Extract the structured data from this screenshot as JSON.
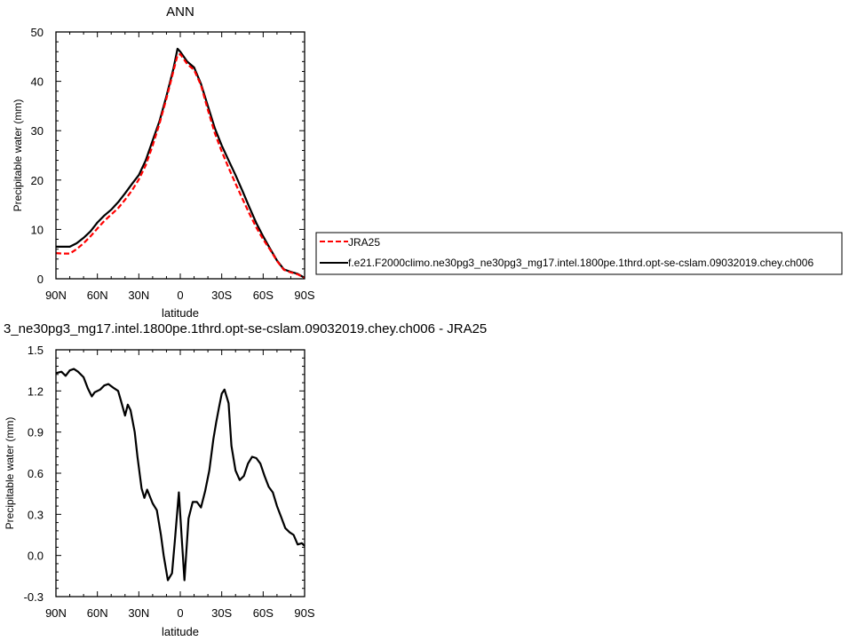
{
  "chart_data": [
    {
      "type": "line",
      "title": "ANN",
      "xlabel": "latitude",
      "ylabel": "Precipitable water (mm)",
      "xlim": [
        90,
        -90
      ],
      "ylim": [
        0,
        50
      ],
      "xticks": [
        90,
        60,
        30,
        0,
        -30,
        -60,
        -90
      ],
      "xtick_labels": [
        "90N",
        "60N",
        "30N",
        "0",
        "30S",
        "60S",
        "90S"
      ],
      "yticks": [
        0,
        10,
        20,
        30,
        40,
        50
      ],
      "ytick_labels": [
        "0",
        "10",
        "20",
        "30",
        "40",
        "50"
      ],
      "legend_position": "right",
      "series": [
        {
          "name": "JRA25",
          "color": "#ff0000",
          "dash": "dashed",
          "x": [
            90,
            85,
            80,
            75,
            70,
            65,
            60,
            55,
            50,
            45,
            40,
            35,
            30,
            25,
            20,
            15,
            10,
            5,
            2,
            0,
            -5,
            -10,
            -15,
            -20,
            -25,
            -30,
            -35,
            -40,
            -45,
            -50,
            -55,
            -60,
            -65,
            -70,
            -75,
            -80,
            -85,
            -90
          ],
          "y": [
            5.2,
            5.1,
            5.1,
            6.0,
            7.2,
            8.6,
            10.2,
            11.7,
            13.0,
            14.3,
            16.0,
            17.9,
            20.1,
            23.0,
            27.0,
            31.5,
            36.5,
            42.0,
            45.3,
            45.5,
            43.5,
            42.3,
            39.2,
            34.2,
            29.5,
            25.8,
            22.5,
            19.3,
            16.2,
            13.2,
            10.4,
            8.0,
            5.9,
            3.6,
            1.8,
            1.3,
            0.9,
            0.2
          ]
        },
        {
          "name": "f.e21.F2000climo.ne30pg3_ne30pg3_mg17.intel.1800pe.1thrd.opt-se-cslam.09032019.chey.ch006",
          "color": "#000000",
          "dash": "solid",
          "x": [
            90,
            85,
            80,
            75,
            70,
            65,
            60,
            55,
            50,
            45,
            40,
            35,
            30,
            25,
            20,
            15,
            10,
            5,
            2,
            0,
            -5,
            -10,
            -15,
            -20,
            -25,
            -30,
            -35,
            -40,
            -45,
            -50,
            -55,
            -60,
            -65,
            -70,
            -75,
            -80,
            -85,
            -90
          ],
          "y": [
            6.5,
            6.5,
            6.5,
            7.2,
            8.3,
            9.6,
            11.4,
            12.8,
            14.0,
            15.5,
            17.3,
            19.2,
            21.0,
            24.0,
            28.0,
            32.0,
            37.0,
            42.5,
            46.6,
            46.0,
            44.0,
            42.8,
            39.5,
            35.0,
            30.5,
            27.0,
            24.0,
            21.0,
            17.8,
            14.5,
            11.3,
            8.6,
            6.1,
            3.7,
            1.9,
            1.4,
            1.0,
            0.2
          ]
        }
      ]
    },
    {
      "type": "line",
      "title": "3_ne30pg3_mg17.intel.1800pe.1thrd.opt-se-cslam.09032019.chey.ch006 - JRA25",
      "xlabel": "latitude",
      "ylabel": "Precipitable water (mm)",
      "xlim": [
        90,
        -90
      ],
      "ylim": [
        -0.3,
        1.5
      ],
      "xticks": [
        90,
        60,
        30,
        0,
        -30,
        -60,
        -90
      ],
      "xtick_labels": [
        "90N",
        "60N",
        "30N",
        "0",
        "30S",
        "60S",
        "90S"
      ],
      "yticks": [
        -0.3,
        0.0,
        0.3,
        0.6,
        0.9,
        1.2,
        1.5
      ],
      "ytick_labels": [
        "-0.3",
        "0.0",
        "0.3",
        "0.6",
        "0.9",
        "1.2",
        "1.5"
      ],
      "series": [
        {
          "color": "#000000",
          "dash": "solid",
          "x": [
            90,
            86,
            83,
            80,
            77,
            74,
            70,
            67,
            64,
            62,
            58,
            55,
            52,
            48,
            45,
            43,
            40,
            38,
            36,
            33,
            31,
            28,
            26,
            24,
            20,
            17,
            14,
            12,
            9,
            6,
            4,
            1,
            -1,
            -3,
            -6,
            -9,
            -12,
            -15,
            -18,
            -21,
            -24,
            -26,
            -28,
            -30,
            -32,
            -35,
            -37,
            -40,
            -43,
            -46,
            -49,
            -52,
            -55,
            -58,
            -61,
            -64,
            -67,
            -70,
            -73,
            -76,
            -79,
            -82,
            -85,
            -88,
            -90
          ],
          "y": [
            1.33,
            1.34,
            1.31,
            1.35,
            1.36,
            1.34,
            1.3,
            1.22,
            1.16,
            1.19,
            1.21,
            1.24,
            1.25,
            1.22,
            1.2,
            1.13,
            1.02,
            1.1,
            1.06,
            0.9,
            0.72,
            0.49,
            0.42,
            0.48,
            0.38,
            0.33,
            0.15,
            0.0,
            -0.18,
            -0.13,
            0.1,
            0.46,
            0.13,
            -0.18,
            0.27,
            0.39,
            0.39,
            0.35,
            0.47,
            0.62,
            0.85,
            0.97,
            1.08,
            1.18,
            1.21,
            1.11,
            0.8,
            0.62,
            0.55,
            0.58,
            0.67,
            0.72,
            0.71,
            0.67,
            0.58,
            0.5,
            0.46,
            0.36,
            0.28,
            0.2,
            0.17,
            0.15,
            0.08,
            0.09,
            0.07
          ]
        }
      ]
    }
  ]
}
